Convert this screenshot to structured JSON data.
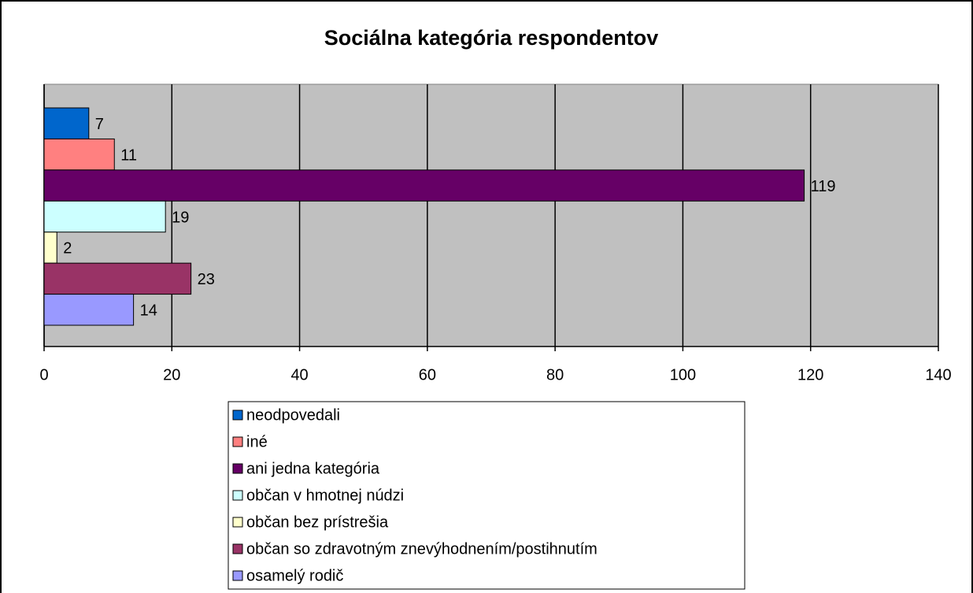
{
  "chart_data": {
    "type": "bar",
    "orientation": "horizontal",
    "title": "Sociálna kategória respondentov",
    "categories": [
      null
    ],
    "series": [
      {
        "name": "neodpovedali",
        "color": "#0066cc",
        "values": [
          7
        ]
      },
      {
        "name": "iné",
        "color": "#ff8080",
        "values": [
          11
        ]
      },
      {
        "name": "ani jedna kategória",
        "color": "#660066",
        "values": [
          119
        ]
      },
      {
        "name": "občan v hmotnej núdzi",
        "color": "#ccffff",
        "values": [
          19
        ]
      },
      {
        "name": "občan bez prístrešia",
        "color": "#ffffcc",
        "values": [
          2
        ]
      },
      {
        "name": "občan so zdravotným znevýhodnením/postihnutím",
        "color": "#993366",
        "values": [
          23
        ]
      },
      {
        "name": "osamelý rodič",
        "color": "#9999ff",
        "values": [
          14
        ]
      }
    ],
    "xlim": [
      0,
      140
    ],
    "xticks": [
      0,
      20,
      40,
      60,
      80,
      100,
      120,
      140
    ],
    "grid": true,
    "plot_background": "#c0c0c0",
    "legend": "bottom"
  }
}
